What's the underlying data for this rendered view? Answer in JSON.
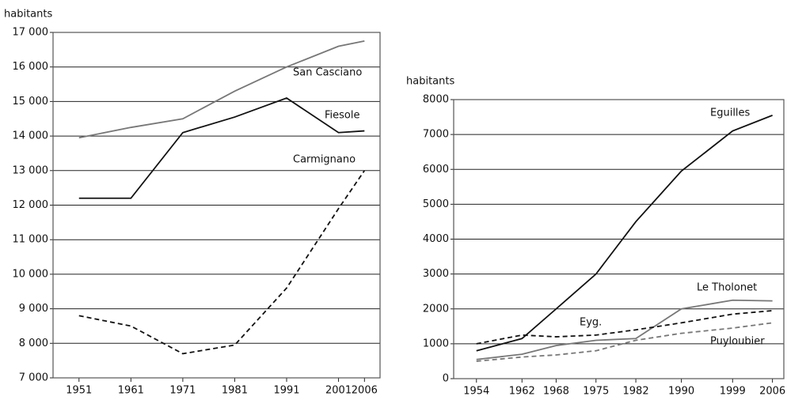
{
  "chart_data": [
    {
      "type": "line",
      "y_label": "habitants",
      "x": [
        1951,
        1961,
        1971,
        1981,
        1991,
        2001,
        2006
      ],
      "xlim": [
        1946,
        2009
      ],
      "xticks": [
        1951,
        1961,
        1971,
        1981,
        1991,
        2001,
        2006
      ],
      "ylim": [
        7000,
        17000
      ],
      "yticks": [
        {
          "value": 7000,
          "label": "7 000"
        },
        {
          "value": 8000,
          "label": "8 000"
        },
        {
          "value": 9000,
          "label": "9 000"
        },
        {
          "value": 10000,
          "label": "10 000"
        },
        {
          "value": 11000,
          "label": "11 000"
        },
        {
          "value": 12000,
          "label": "12 000"
        },
        {
          "value": 13000,
          "label": "13 000"
        },
        {
          "value": 14000,
          "label": "14 000"
        },
        {
          "value": 15000,
          "label": "15 000"
        },
        {
          "value": 16000,
          "label": "16 000"
        },
        {
          "value": 17000,
          "label": "17 000"
        }
      ],
      "grid": true,
      "series": [
        {
          "name": "San Casciano",
          "color": "#777777",
          "dash": false,
          "values": [
            13950,
            14250,
            14500,
            15300,
            16000,
            16600,
            16750
          ]
        },
        {
          "name": "Fiesole",
          "color": "#111111",
          "dash": false,
          "values": [
            12200,
            12200,
            14100,
            14550,
            15100,
            14100,
            14150
          ]
        },
        {
          "name": "Carmignano",
          "color": "#111111",
          "dash": true,
          "values": [
            8800,
            8500,
            7700,
            7950,
            9600,
            11900,
            13000
          ]
        }
      ]
    },
    {
      "type": "line",
      "y_label": "habitants",
      "x": [
        1954,
        1962,
        1968,
        1975,
        1982,
        1990,
        1999,
        2006
      ],
      "xlim": [
        1950,
        2008
      ],
      "xticks": [
        1954,
        1962,
        1968,
        1975,
        1982,
        1990,
        1999,
        2006
      ],
      "ylim": [
        0,
        8000
      ],
      "yticks": [
        0,
        1000,
        2000,
        3000,
        4000,
        5000,
        6000,
        7000,
        8000
      ],
      "grid": true,
      "series": [
        {
          "name": "Eguilles",
          "color": "#111111",
          "dash": false,
          "values": [
            800,
            1150,
            2000,
            3000,
            4500,
            5950,
            7100,
            7550
          ]
        },
        {
          "name": "Le Tholonet",
          "color": "#777777",
          "dash": false,
          "values": [
            550,
            700,
            950,
            1100,
            1150,
            2000,
            2250,
            2230
          ]
        },
        {
          "name": "Eyg.",
          "color": "#111111",
          "dash": true,
          "values": [
            1000,
            1250,
            1200,
            1250,
            1400,
            1600,
            1850,
            1950
          ]
        },
        {
          "name": "Puyloubier",
          "color": "#777777",
          "dash": true,
          "values": [
            500,
            620,
            680,
            800,
            1100,
            1300,
            1450,
            1600
          ]
        }
      ]
    }
  ]
}
